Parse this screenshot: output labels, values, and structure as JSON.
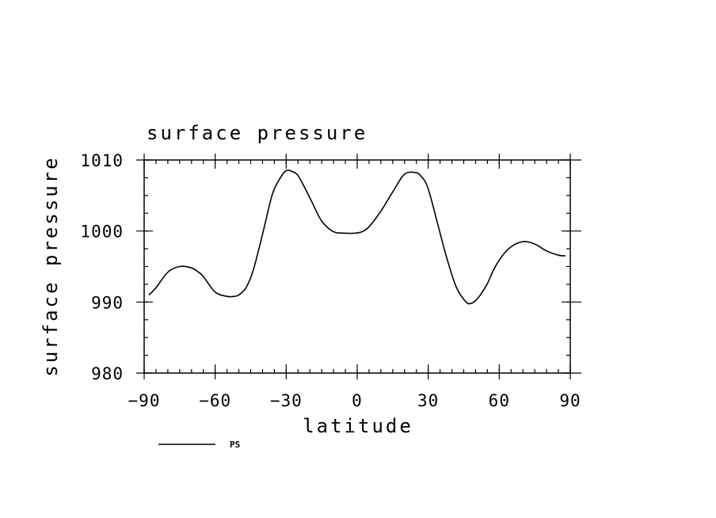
{
  "chart_data": {
    "type": "line",
    "title": "surface pressure",
    "xlabel": "latitude",
    "ylabel": "surface pressure",
    "xlim": [
      -90,
      90
    ],
    "ylim": [
      980,
      1010
    ],
    "xticks": [
      -90,
      -60,
      -30,
      0,
      30,
      60,
      90
    ],
    "xtick_labels": [
      "−90",
      "−60",
      "−30",
      "0",
      "30",
      "60",
      "90"
    ],
    "yticks": [
      980,
      990,
      1000,
      1010
    ],
    "ytick_labels": [
      "980",
      "990",
      "1000",
      "1010"
    ],
    "grid": false,
    "legend_position": "bottom-left",
    "series": [
      {
        "name": "PS",
        "color": "#000000",
        "x": [
          -88,
          -85,
          -80,
          -75,
          -70,
          -67,
          -65,
          -60,
          -55,
          -52,
          -50,
          -47,
          -44,
          -40,
          -36,
          -33,
          -30,
          -27,
          -25,
          -22,
          -19,
          -15,
          -10,
          -5,
          -1,
          2,
          5,
          10,
          15,
          20,
          25,
          27,
          29,
          31,
          34,
          38,
          42,
          46,
          48,
          50,
          52,
          55,
          58,
          62,
          66,
          70,
          73,
          76,
          80,
          85,
          88
        ],
        "y": [
          991.0,
          992.0,
          994.2,
          995.0,
          994.8,
          994.2,
          993.6,
          991.4,
          990.8,
          990.8,
          991.0,
          992.0,
          994.4,
          999.5,
          1005.0,
          1007.2,
          1008.5,
          1008.3,
          1007.8,
          1006.0,
          1004.0,
          1001.4,
          999.9,
          999.7,
          999.7,
          999.9,
          1000.6,
          1002.8,
          1005.5,
          1008.0,
          1008.2,
          1007.7,
          1006.8,
          1004.8,
          1001.0,
          996.0,
          992.0,
          990.0,
          989.8,
          990.2,
          991.0,
          992.6,
          994.8,
          996.8,
          998.0,
          998.5,
          998.4,
          998.0,
          997.2,
          996.6,
          996.5
        ]
      }
    ]
  }
}
